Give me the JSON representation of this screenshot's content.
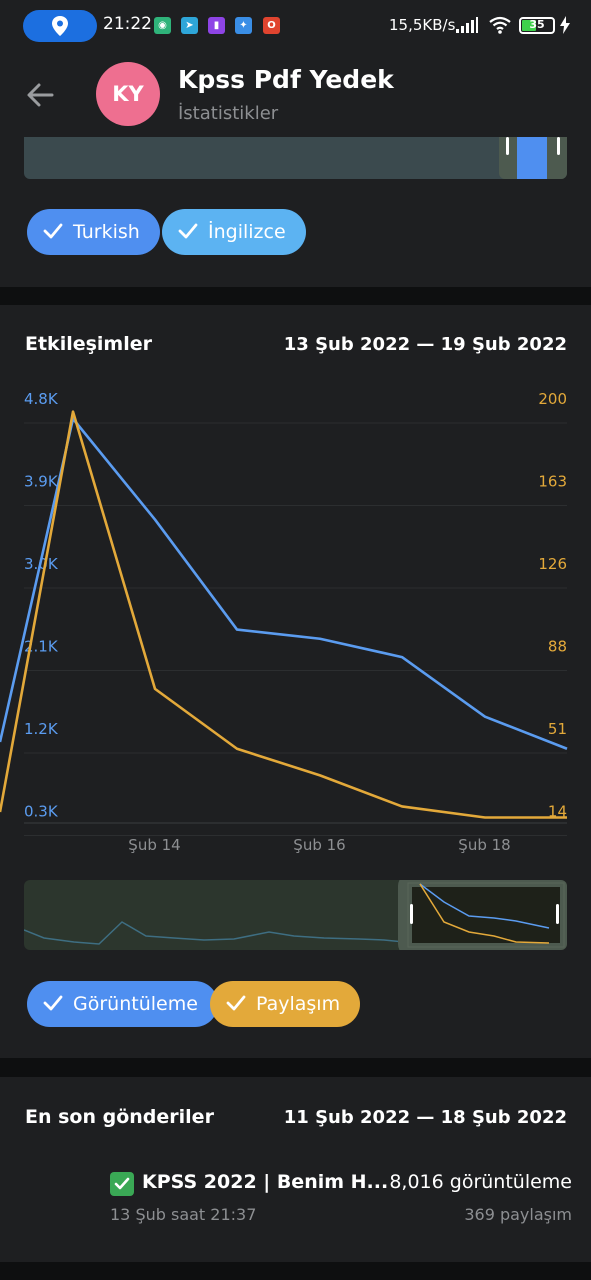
{
  "status_bar": {
    "time": "21:22",
    "network_speed": "15,5KB/s",
    "battery_level": "35",
    "notification_icons": [
      "camera-icon",
      "telegram-icon",
      "twitch-icon",
      "twitter-icon",
      "opera-icon"
    ]
  },
  "header": {
    "avatar_initials": "KY",
    "title": "Kpss Pdf Yedek",
    "subtitle": "İstatistikler",
    "avatar_color": "#ee6f90"
  },
  "languages": {
    "chips": [
      {
        "label": "Turkish",
        "color": "#4f8ff0"
      },
      {
        "label": "İngilizce",
        "color": "#5cb3f2"
      }
    ]
  },
  "interactions": {
    "title": "Etkileşimler",
    "date_range": "13 Şub 2022 — 19 Şub 2022",
    "chips": [
      {
        "label": "Görüntüleme",
        "color": "#4f8ff0"
      },
      {
        "label": "Paylaşım",
        "color": "#e3a93a"
      }
    ]
  },
  "chart_data": {
    "type": "line",
    "x": [
      "Şub 13",
      "Şub 14",
      "Şub 15",
      "Şub 16",
      "Şub 17",
      "Şub 18",
      "Şub 19"
    ],
    "x_tick_labels": [
      "Şub 14",
      "Şub 16",
      "Şub 18"
    ],
    "y_left_ticks": [
      "4.8K",
      "3.9K",
      "3.0K",
      "2.1K",
      "1.2K",
      "0.3K"
    ],
    "y_right_ticks": [
      "200",
      "163",
      "126",
      "88",
      "51",
      "14"
    ],
    "ylim_left": [
      0.3,
      4.8
    ],
    "ylim_right": [
      14,
      200
    ],
    "grid": true,
    "series": [
      {
        "name": "Görüntüleme",
        "axis": "left",
        "color": "#5b9cf0",
        "values": [
          4.65,
          3.55,
          2.35,
          2.25,
          2.05,
          1.4,
          1.05
        ]
      },
      {
        "name": "Paylaşım",
        "axis": "right",
        "color": "#e3a93a",
        "values": [
          197,
          72,
          45,
          33,
          19,
          14,
          14
        ]
      }
    ]
  },
  "recent_posts": {
    "title": "En son gönderiler",
    "date_range": "11 Şub 2022 — 18 Şub 2022",
    "items": [
      {
        "title": "KPSS 2022 | Benim H...",
        "date": "13 Şub saat 21:37",
        "views": "8,016 görüntüleme",
        "shares": "369 paylaşım"
      }
    ]
  }
}
